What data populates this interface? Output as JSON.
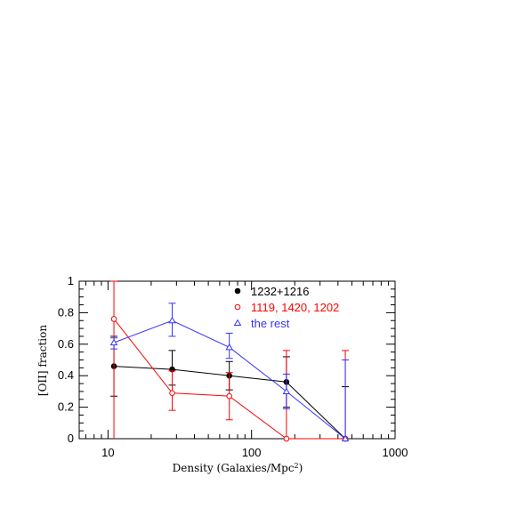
{
  "chart_data": {
    "type": "scatter",
    "xlabel": "Density (Galaxies/Mpc",
    "xlabel_sup": "2",
    "xlabel_end": ")",
    "ylabel": "[OII] fraction",
    "xscale": "log",
    "xlim": [
      6.3,
      1000
    ],
    "ylim": [
      0,
      1
    ],
    "x_ticks": [
      10,
      100,
      1000
    ],
    "x_tick_labels": [
      "10",
      "100",
      "1000"
    ],
    "y_ticks": [
      0,
      0.2,
      0.4,
      0.6,
      0.8,
      1
    ],
    "y_tick_labels": [
      "0",
      "0.2",
      "0.4",
      "0.6",
      "0.8",
      "1"
    ],
    "legend_position": "top-center",
    "series": [
      {
        "name": "1232+1216",
        "color": "#000000",
        "marker": "filled-circle",
        "points": [
          {
            "x": 11,
            "y": 0.46,
            "lo": 0.27,
            "hi": 0.65
          },
          {
            "x": 28,
            "y": 0.44,
            "lo": 0.34,
            "hi": 0.56
          },
          {
            "x": 70,
            "y": 0.4,
            "lo": 0.31,
            "hi": 0.49
          },
          {
            "x": 175,
            "y": 0.36,
            "lo": 0.2,
            "hi": 0.52
          },
          {
            "x": 450,
            "y": 0.0,
            "lo": 0.0,
            "hi": 0.33
          }
        ]
      },
      {
        "name": "1119, 1420, 1202",
        "color": "#ff0000",
        "marker": "open-circle",
        "points": [
          {
            "x": 11,
            "y": 0.76,
            "lo": 0.0,
            "hi": 1.0
          },
          {
            "x": 28,
            "y": 0.29,
            "lo": 0.18,
            "hi": 0.43
          },
          {
            "x": 70,
            "y": 0.27,
            "lo": 0.12,
            "hi": 0.42
          },
          {
            "x": 175,
            "y": 0.0,
            "lo": 0.0,
            "hi": 0.56
          },
          {
            "x": 450,
            "y": 0.0,
            "lo": 0.0,
            "hi": 0.56
          }
        ]
      },
      {
        "name": "the rest",
        "color": "#3333ff",
        "marker": "open-triangle",
        "points": [
          {
            "x": 11,
            "y": 0.61,
            "lo": 0.57,
            "hi": 0.64
          },
          {
            "x": 28,
            "y": 0.75,
            "lo": 0.65,
            "hi": 0.86
          },
          {
            "x": 70,
            "y": 0.58,
            "lo": 0.51,
            "hi": 0.67
          },
          {
            "x": 175,
            "y": 0.3,
            "lo": 0.19,
            "hi": 0.41
          },
          {
            "x": 450,
            "y": 0.0,
            "lo": 0.0,
            "hi": 0.5
          }
        ]
      }
    ]
  }
}
